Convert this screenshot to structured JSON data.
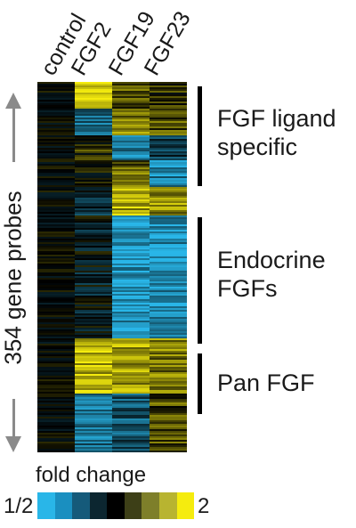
{
  "chart_data": {
    "type": "heatmap",
    "columns": [
      "control",
      "FGF2",
      "FGF19",
      "FGF23"
    ],
    "row_axis_label": "354 gene probes",
    "row_count": 354,
    "clusters": [
      {
        "label_lines": [
          "FGF ligand",
          "specific"
        ]
      },
      {
        "label_lines": [
          "Endocrine",
          "FGFs"
        ]
      },
      {
        "label_lines": [
          "Pan FGF"
        ]
      }
    ],
    "legend": {
      "title": "fold change",
      "min_label": "1/2",
      "max_label": "2",
      "colors": [
        "#29b6e8",
        "#1a8fc0",
        "#155a7a",
        "#0c2630",
        "#000000",
        "#3d3f17",
        "#7e7f2a",
        "#b8b430",
        "#f5ec0e"
      ]
    }
  }
}
